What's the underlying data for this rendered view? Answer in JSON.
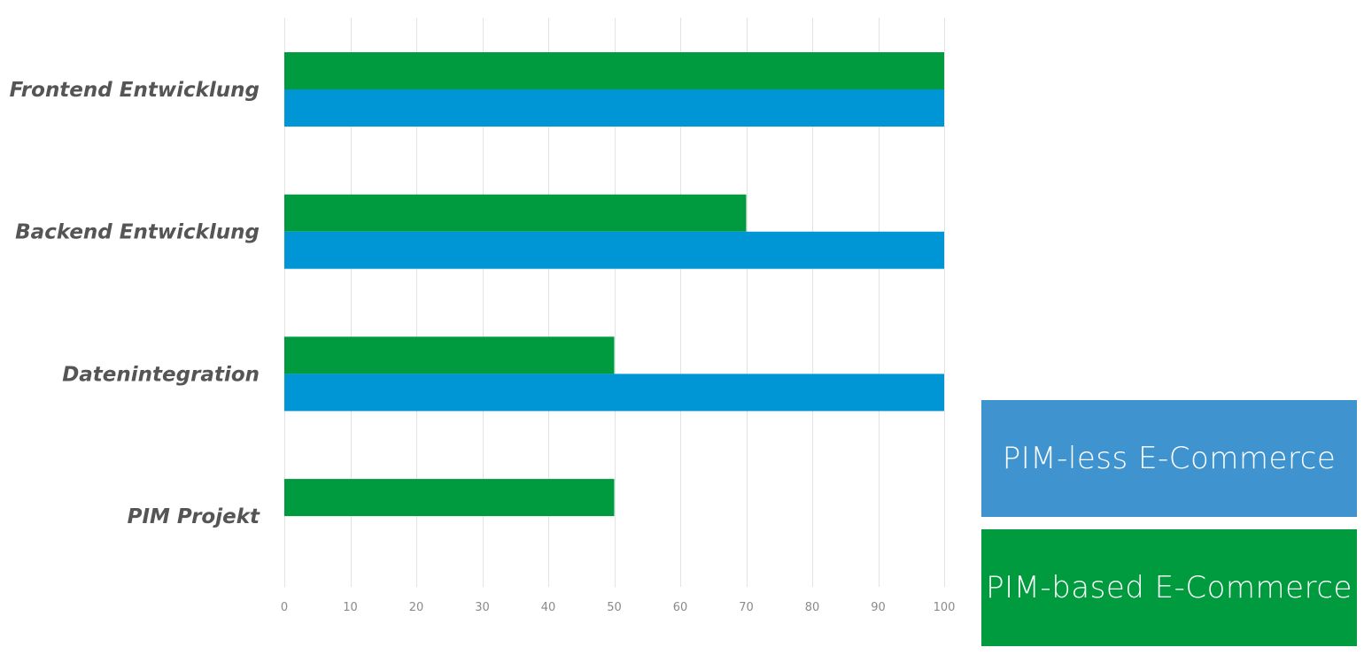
{
  "chart_data": {
    "type": "bar",
    "orientation": "horizontal",
    "categories": [
      "Frontend Entwicklung",
      "Backend Entwicklung",
      "Datenintegration",
      "PIM Projekt"
    ],
    "series": [
      {
        "name": "PIM-based E-Commerce",
        "color": "#009b3f",
        "values": [
          100,
          70,
          50,
          50
        ]
      },
      {
        "name": "PIM-less E-Commerce",
        "color": "#0096d6",
        "values": [
          100,
          100,
          100,
          0
        ]
      }
    ],
    "xlim": [
      0,
      100
    ],
    "xticks": [
      0,
      10,
      20,
      30,
      40,
      50,
      60,
      70,
      80,
      90,
      100
    ],
    "grid": true,
    "legend_placement": "bottom-right"
  },
  "legend": {
    "items": [
      {
        "label": "PIM-less E-Commerce",
        "color": "#3f94d0"
      },
      {
        "label": "PIM-based E-Commerce",
        "color": "#009b3f"
      }
    ]
  }
}
